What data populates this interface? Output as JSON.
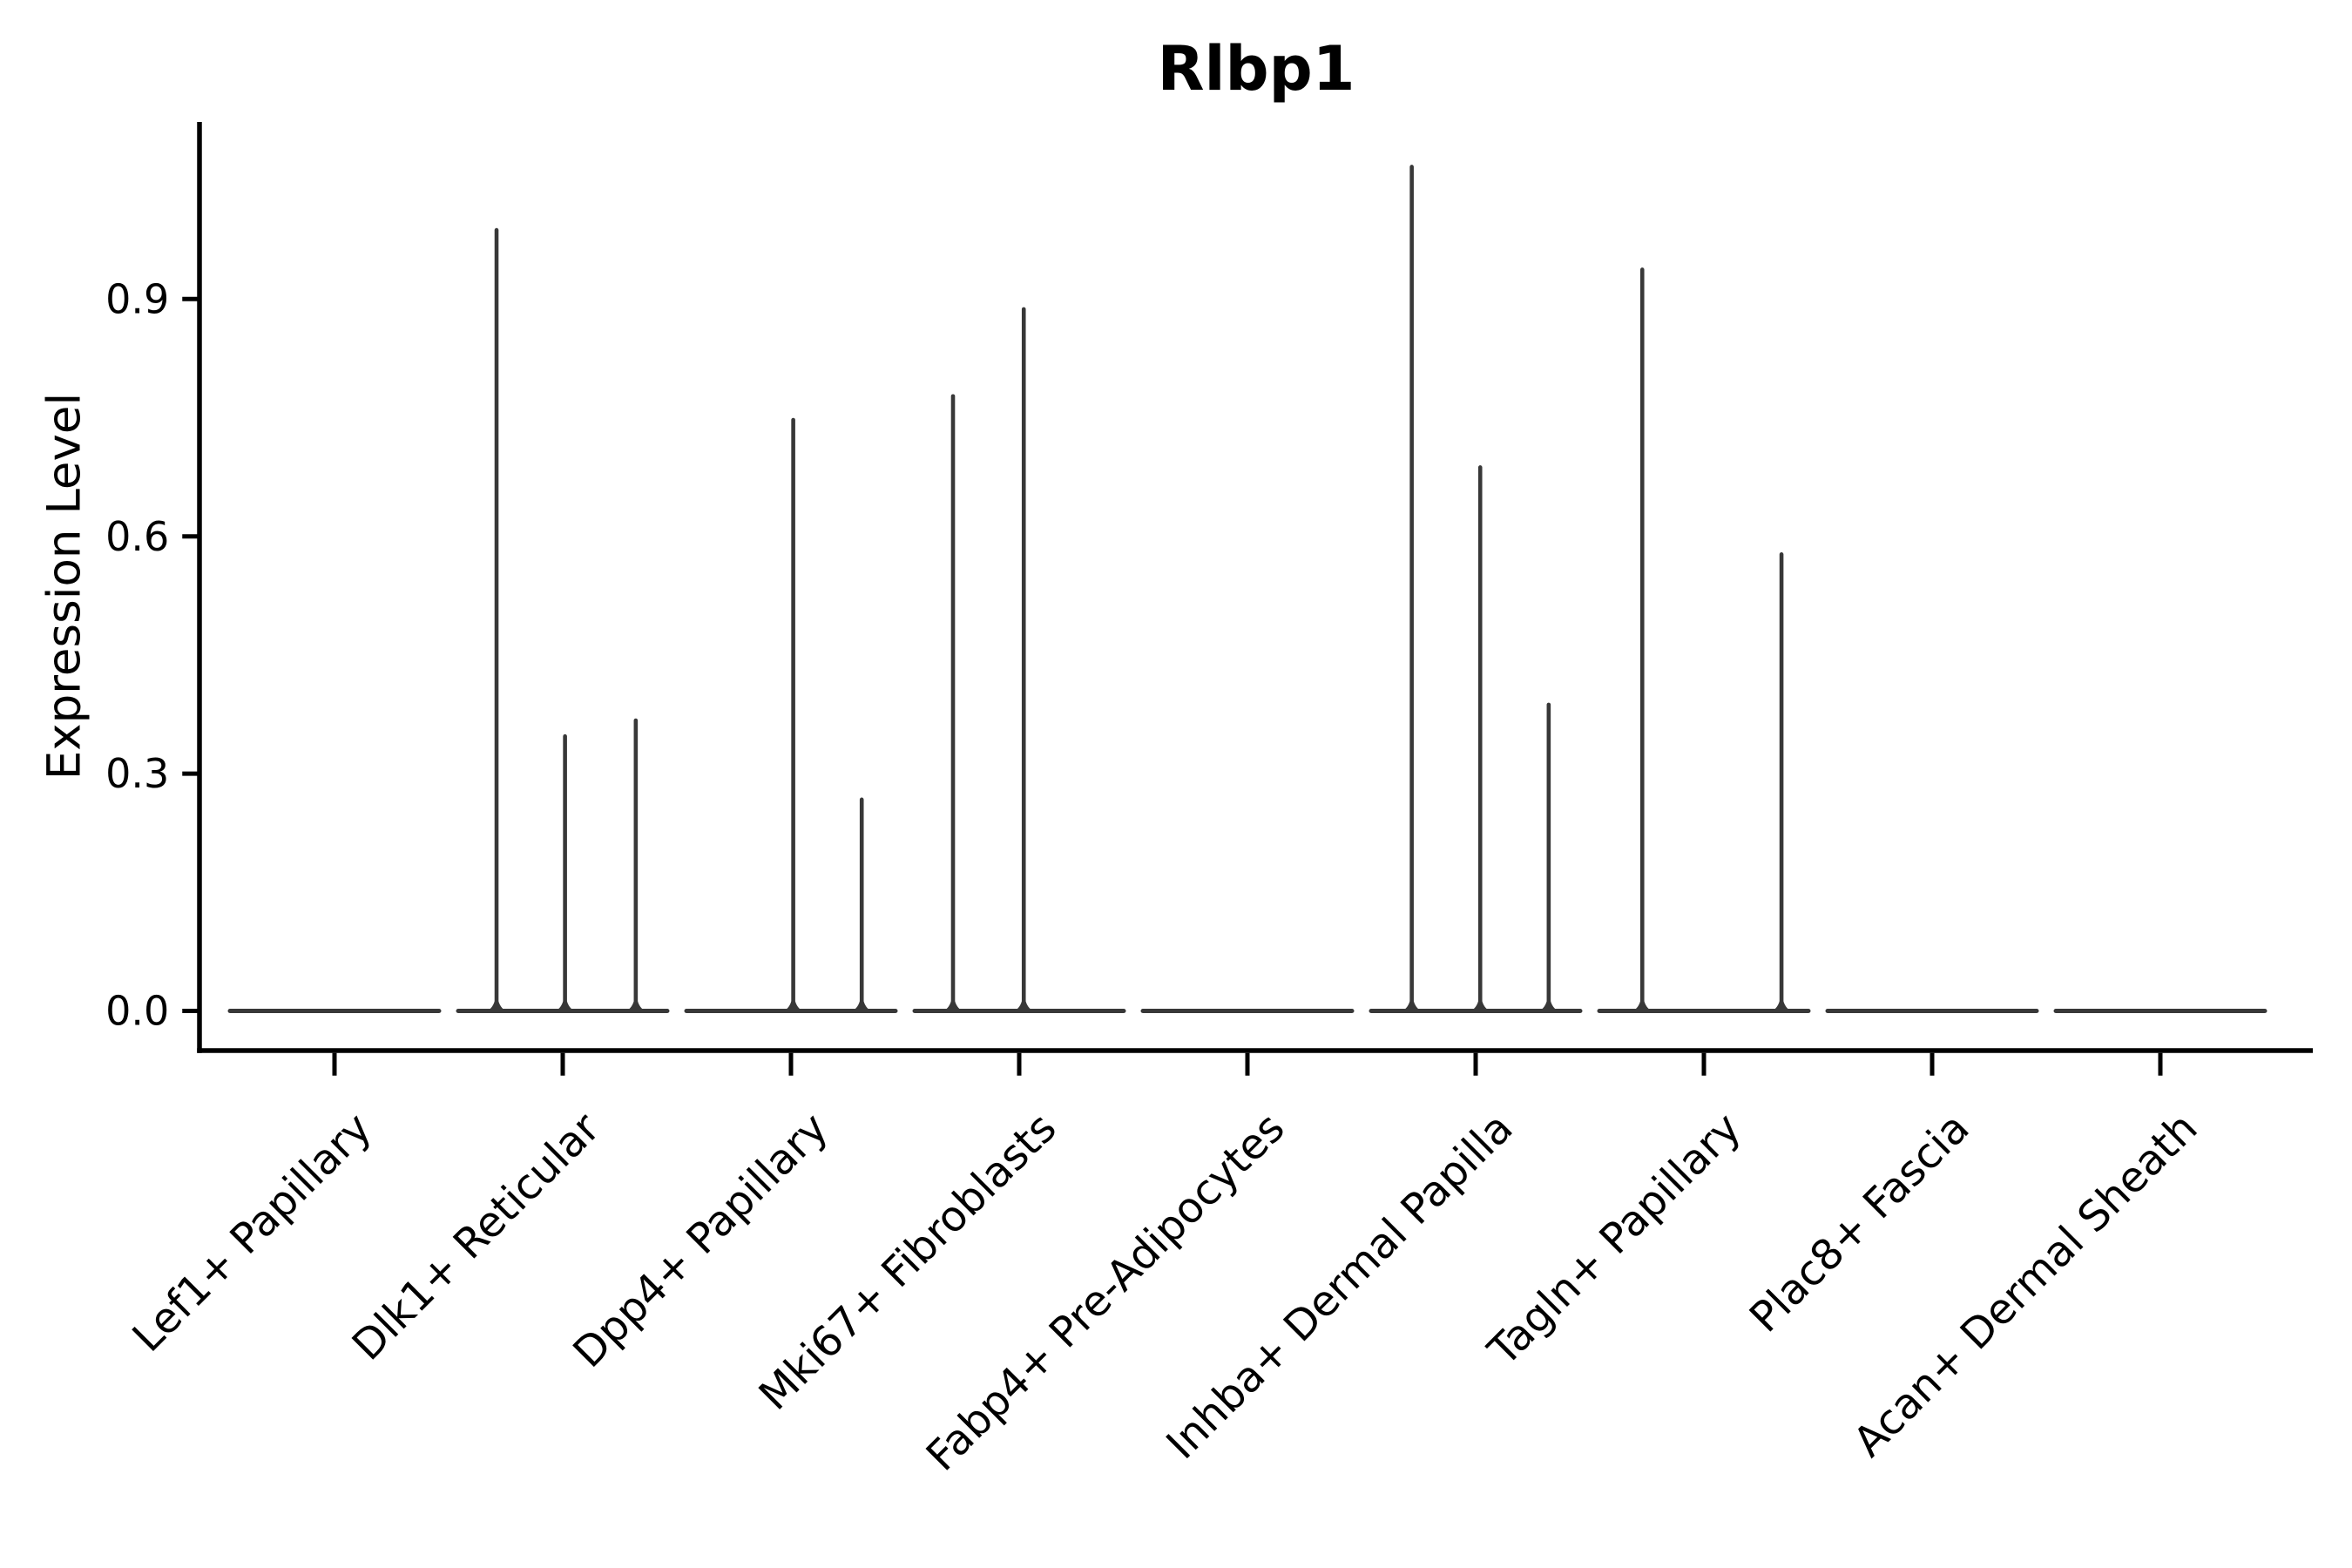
{
  "chart_data": {
    "type": "violin",
    "title": "Rlbp1",
    "xlabel": "",
    "ylabel": "Expression Level",
    "yticks": [
      0.0,
      0.3,
      0.6,
      0.9
    ],
    "ytick_labels": [
      "0.0",
      "0.3",
      "0.6",
      "0.9"
    ],
    "ylim": [
      -0.05,
      1.12
    ],
    "grid": false,
    "legend": "none",
    "categories": [
      "Lef1+ Papillary",
      "Dlk1+ Reticular",
      "Dpp4+ Papillary",
      "Mki67+ Fibroblasts",
      "Fabp4+ Pre-Adipocytes",
      "Inhba+ Dermal Papilla",
      "Tagln+ Papillary",
      "Plac8+ Fascia",
      "Acan+ Dermal Sheath"
    ],
    "violins": [
      {
        "category": "Lef1+ Papillary",
        "spikes": []
      },
      {
        "category": "Dlk1+ Reticular",
        "spikes": [
          {
            "offset": -0.29,
            "value": 0.99
          },
          {
            "offset": 0.01,
            "value": 0.35
          },
          {
            "offset": 0.32,
            "value": 0.37
          }
        ]
      },
      {
        "category": "Dpp4+ Papillary",
        "spikes": [
          {
            "offset": 0.01,
            "value": 0.75
          },
          {
            "offset": 0.31,
            "value": 0.27
          }
        ]
      },
      {
        "category": "Mki67+ Fibroblasts",
        "spikes": [
          {
            "offset": -0.29,
            "value": 0.78
          },
          {
            "offset": 0.02,
            "value": 0.89
          }
        ]
      },
      {
        "category": "Fabp4+ Pre-Adipocytes",
        "spikes": []
      },
      {
        "category": "Inhba+ Dermal Papilla",
        "spikes": [
          {
            "offset": -0.28,
            "value": 1.07
          },
          {
            "offset": 0.02,
            "value": 0.69
          },
          {
            "offset": 0.32,
            "value": 0.39
          }
        ]
      },
      {
        "category": "Tagln+ Papillary",
        "spikes": [
          {
            "offset": -0.27,
            "value": 0.94
          },
          {
            "offset": 0.34,
            "value": 0.58
          }
        ]
      },
      {
        "category": "Plac8+ Fascia",
        "spikes": []
      },
      {
        "category": "Acan+ Dermal Sheath",
        "spikes": []
      }
    ],
    "colors": {
      "violin_stroke": "#383838",
      "axis": "#000000",
      "text": "#000000",
      "background": "#ffffff"
    }
  }
}
